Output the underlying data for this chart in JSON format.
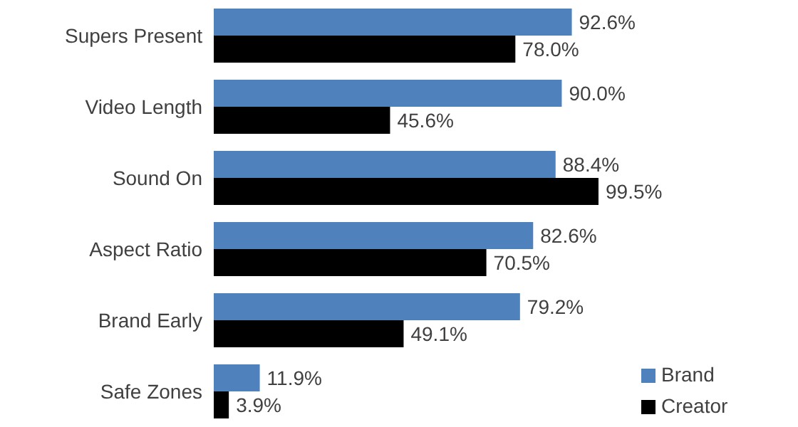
{
  "chart_data": {
    "type": "bar",
    "orientation": "horizontal",
    "categories": [
      "Supers Present",
      "Video Length",
      "Sound On",
      "Aspect Ratio",
      "Brand Early",
      "Safe Zones"
    ],
    "series": [
      {
        "name": "Brand",
        "color": "#4f81bd",
        "values": [
          92.6,
          90.0,
          88.4,
          82.6,
          79.2,
          11.9
        ],
        "value_labels": [
          "92.6%",
          "90.0%",
          "88.4%",
          "82.6%",
          "79.2%",
          "11.9%"
        ]
      },
      {
        "name": "Creator",
        "color": "#000000",
        "values": [
          78.0,
          45.6,
          99.5,
          70.5,
          49.1,
          3.9
        ],
        "value_labels": [
          "78.0%",
          "45.6%",
          "99.5%",
          "70.5%",
          "49.1%",
          "3.9%"
        ]
      }
    ],
    "legend": "bottom right",
    "grid": false
  }
}
